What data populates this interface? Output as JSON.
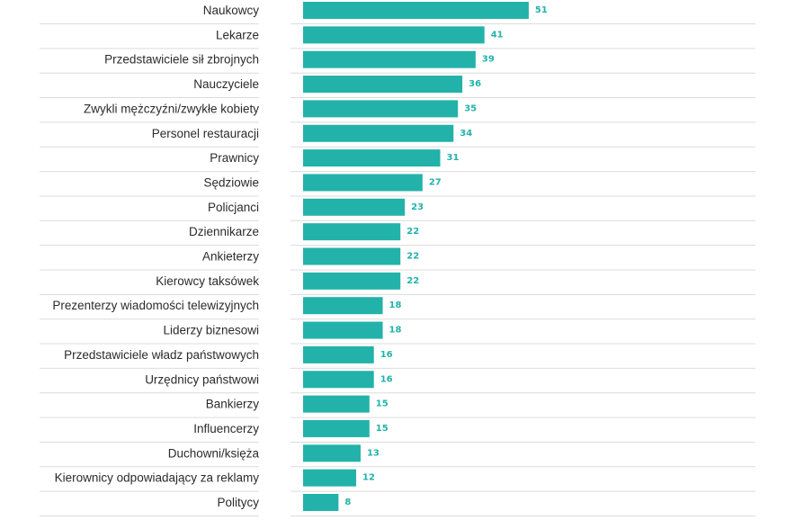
{
  "chart_data": {
    "type": "bar",
    "orientation": "horizontal",
    "title": "",
    "xlabel": "",
    "ylabel": "",
    "xlim": [
      0,
      85
    ],
    "bar_color": "#22b2aa",
    "value_label_color": "#22b2aa",
    "grid": false,
    "categories": [
      "Naukowcy",
      "Lekarze",
      "Przedstawiciele sił zbrojnych",
      "Nauczyciele",
      "Zwykli mężczyźni/zwykłe kobiety",
      "Personel restauracji",
      "Prawnicy",
      "Sędziowie",
      "Policjanci",
      "Dziennikarze",
      "Ankieterzy",
      "Kierowcy taksówek",
      "Prezenterzy wiadomości telewizyjnych",
      "Liderzy biznesowi",
      "Przedstawiciele władz państwowych",
      "Urzędnicy państwowi",
      "Bankierzy",
      "Influencerzy",
      "Duchowni/księża",
      "Kierownicy odpowiadający za reklamy",
      "Politycy"
    ],
    "values": [
      51,
      41,
      39,
      36,
      35,
      34,
      31,
      27,
      23,
      22,
      22,
      22,
      18,
      18,
      16,
      16,
      15,
      15,
      13,
      12,
      8
    ]
  }
}
